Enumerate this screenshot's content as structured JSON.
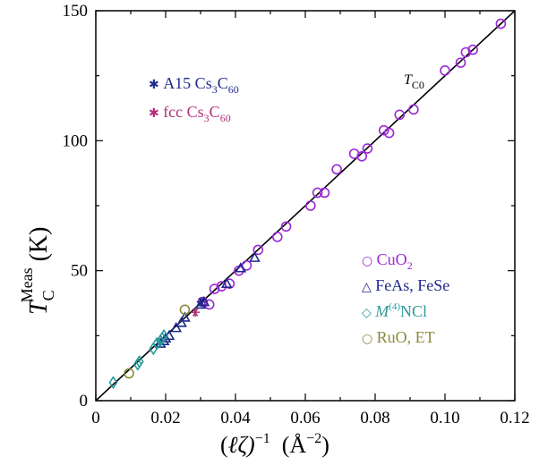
{
  "chart_data": {
    "type": "scatter",
    "title": "",
    "xlabel": "(ℓζ)⁻¹ (Å⁻²)",
    "ylabel": "T_C^Meas (K)",
    "xlim": [
      0,
      0.12
    ],
    "ylim": [
      0,
      150
    ],
    "x_ticks": [
      0,
      0.02,
      0.04,
      0.06,
      0.08,
      0.1,
      0.12
    ],
    "x_tick_labels": [
      "0",
      "0.02",
      "0.04",
      "0.06",
      "0.08",
      "0.10",
      "0.12"
    ],
    "y_ticks": [
      0,
      50,
      100,
      150
    ],
    "y_tick_labels": [
      "0",
      "50",
      "100",
      "150"
    ],
    "grid": false,
    "line": {
      "label": "T_C0",
      "x": [
        0,
        0.12
      ],
      "y": [
        0,
        150
      ]
    },
    "series": [
      {
        "name": "CuO2",
        "marker": "circle",
        "color": "#9b27d6",
        "x": [
          0.0306,
          0.0325,
          0.034,
          0.036,
          0.0383,
          0.041,
          0.0432,
          0.0465,
          0.052,
          0.0545,
          0.0615,
          0.0635,
          0.0655,
          0.069,
          0.074,
          0.0762,
          0.0778,
          0.0825,
          0.084,
          0.087,
          0.091,
          0.1,
          0.1045,
          0.106,
          0.108,
          0.116
        ],
        "y": [
          38,
          37,
          43,
          44,
          45,
          50,
          52,
          58,
          63,
          67,
          75,
          80,
          80,
          89,
          95,
          94,
          97,
          104,
          103,
          110,
          112,
          127,
          130,
          134,
          135,
          145
        ]
      },
      {
        "name": "FeAs, FeSe",
        "marker": "triangle",
        "color": "#1f2a8c",
        "x": [
          0.0185,
          0.0195,
          0.02,
          0.021,
          0.023,
          0.0245,
          0.0255,
          0.03,
          0.031,
          0.0375,
          0.0415,
          0.0455
        ],
        "y": [
          22,
          23,
          24,
          25,
          28,
          30,
          32,
          37,
          38,
          45,
          51,
          55
        ]
      },
      {
        "name": "M(4)NCl",
        "marker": "diamond",
        "color": "#2a9a9a",
        "x": [
          0.005,
          0.012,
          0.0125,
          0.0165,
          0.0175,
          0.0185,
          0.019,
          0.0195
        ],
        "y": [
          7,
          14,
          15,
          20,
          22,
          23,
          24,
          25
        ]
      },
      {
        "name": "RuO, ET",
        "marker": "circle",
        "color": "#8a8a3a",
        "x": [
          0.0095,
          0.0255
        ],
        "y": [
          10.5,
          35
        ]
      },
      {
        "name": "A15 Cs3C60",
        "marker": "asterisk",
        "color": "#1f2a8c",
        "x": [
          0.0302
        ],
        "y": [
          38
        ]
      },
      {
        "name": "fcc Cs3C60",
        "marker": "asterisk",
        "color": "#b0307a",
        "x": [
          0.0285
        ],
        "y": [
          34
        ]
      }
    ],
    "legend_upper": [
      {
        "sym": "✱",
        "prefix": "A15 Cs",
        "s1": "3",
        "mid": "C",
        "s2": "60",
        "color": "#1f2a8c"
      },
      {
        "sym": "✱",
        "prefix": "fcc Cs",
        "s1": "3",
        "mid": "C",
        "s2": "60",
        "color": "#b0307a"
      }
    ],
    "legend_lower": [
      {
        "sym": "○",
        "text": "CuO",
        "sub": "2",
        "color": "#9b27d6"
      },
      {
        "sym": "△",
        "text": "FeAs, FeSe",
        "color": "#1f2a8c"
      },
      {
        "sym": "◇",
        "pre": "M",
        "sup": "(4)",
        "text": "NCl",
        "color": "#2a9a9a"
      },
      {
        "sym": "○",
        "text": "RuO, ET",
        "color": "#8a8a3a"
      }
    ]
  }
}
